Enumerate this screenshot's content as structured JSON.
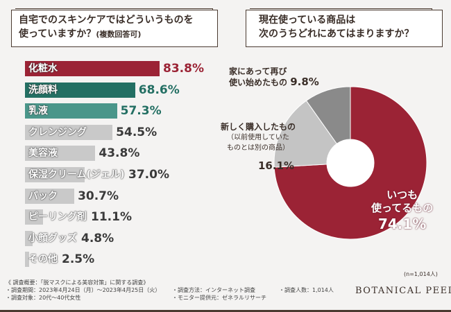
{
  "left_title": {
    "line1": "自宅でのスキンケアではどういうものを",
    "line2": "使っていますか？",
    "note": "(複数回答可)"
  },
  "right_title": {
    "line1": "現在使っている商品は",
    "line2": "次のうちどれにあてはまりますか？"
  },
  "chart_data": [
    {
      "type": "bar",
      "orientation": "horizontal",
      "categories": [
        "化粧水",
        "洗顔料",
        "乳液",
        "クレンジング",
        "美容液",
        "保湿クリーム(ジェル)",
        "パック",
        "ピーリング剤",
        "小顔グッズ",
        "その他"
      ],
      "values": [
        83.8,
        68.6,
        57.3,
        54.5,
        43.8,
        37.0,
        30.7,
        11.1,
        4.8,
        2.5
      ],
      "value_labels": [
        "83.8%",
        "68.6%",
        "57.3%",
        "54.5%",
        "43.8%",
        "37.0%",
        "30.7%",
        "11.1%",
        "4.8%",
        "2.5%"
      ],
      "colors": [
        "#9b2335",
        "#236f63",
        "#4a968a",
        "#c9c9c9",
        "#c9c9c9",
        "#c9c9c9",
        "#c9c9c9",
        "#c9c9c9",
        "#c9c9c9",
        "#c9c9c9"
      ],
      "value_colors": [
        "#9b2335",
        "#236f63",
        "#236f63",
        "#3a3a3a",
        "#3a3a3a",
        "#3a3a3a",
        "#3a3a3a",
        "#3a3a3a",
        "#3a3a3a",
        "#3a3a3a"
      ]
    },
    {
      "type": "pie",
      "donut": true,
      "slices": [
        {
          "label": "いつも使ってるもの",
          "value": 74.1,
          "value_label": "74.1%",
          "color": "#9b2335"
        },
        {
          "label": "新しく購入したもの（以前使用していたものとは別の商品）",
          "value": 16.1,
          "value_label": "16.1%",
          "color": "#c4c4c4"
        },
        {
          "label": "家にあって再び使い始めたもの",
          "value": 9.8,
          "value_label": "9.8%",
          "color": "#8a8a8a"
        }
      ],
      "note": "(n=1,014人)"
    }
  ],
  "pie_labels": {
    "s0_l1": "いつも",
    "s0_l2": "使ってるもの",
    "s0_v": "74.1%",
    "s1_l1": "新しく購入したもの",
    "s1_l2": "（以前使用していた",
    "s1_l3": "ものとは別の商品）",
    "s1_v": "16.1%",
    "s2_l1": "家にあって再び",
    "s2_l2": "使い始めたもの",
    "s2_v": "9.8%"
  },
  "footer": {
    "summary": "《 調査概要：「脱マスクによる美容対策」に関する調査》",
    "period": "・調査期間：2023年4月24日（月）～2023年4月25日（火）",
    "target": "・調査対象：20代～40代女性",
    "method": "・調査方法：インターネット調査",
    "provider": "・モニター提供元：ゼネラルリサーチ",
    "count": "・調査人数：1,014人",
    "brand": "BOTANICAL PEEL"
  }
}
